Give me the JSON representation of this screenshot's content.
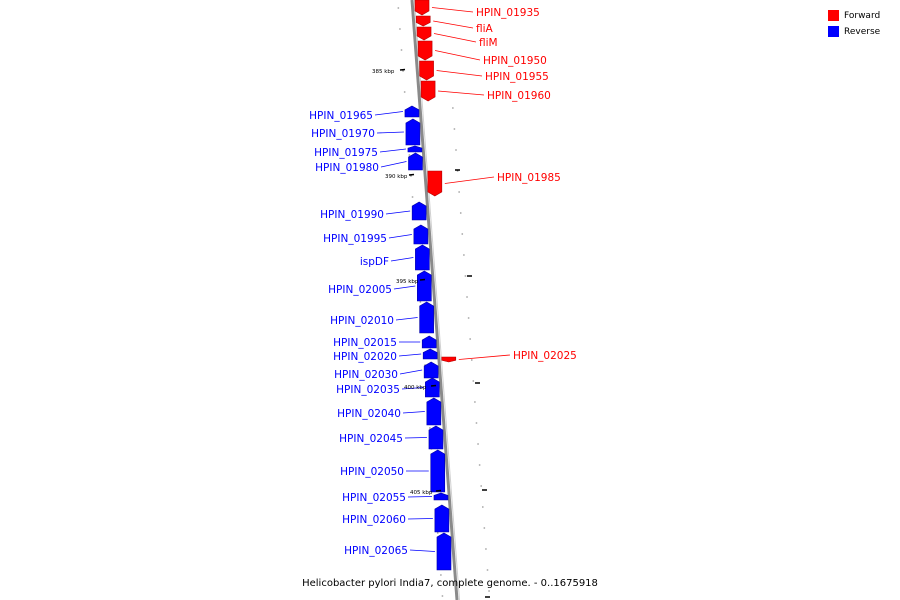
{
  "caption": "Helicobacter pylori India7, complete genome. - 0..1675918",
  "legend": [
    {
      "label": "Forward",
      "color": "#ff0000"
    },
    {
      "label": "Reverse",
      "color": "#0000ff"
    }
  ],
  "colors": {
    "forward": "#ff0000",
    "forward_dark": "#b20000",
    "reverse": "#0000ff",
    "reverse_dark": "#0000a6",
    "backbone": "#8a8a8a",
    "tick": "#000000"
  },
  "scale_marks": [
    {
      "label": "385 kbp"
    },
    {
      "label": "390 kbp"
    },
    {
      "label": "395 kbp"
    },
    {
      "label": "400 kbp"
    },
    {
      "label": "405 kbp"
    }
  ],
  "genes": [
    {
      "name": "HPIN_01935",
      "strand": "forward"
    },
    {
      "name": "fliA",
      "strand": "forward"
    },
    {
      "name": "fliM",
      "strand": "forward"
    },
    {
      "name": "HPIN_01950",
      "strand": "forward"
    },
    {
      "name": "HPIN_01955",
      "strand": "forward"
    },
    {
      "name": "HPIN_01960",
      "strand": "forward"
    },
    {
      "name": "HPIN_01965",
      "strand": "reverse"
    },
    {
      "name": "HPIN_01970",
      "strand": "reverse"
    },
    {
      "name": "HPIN_01975",
      "strand": "reverse"
    },
    {
      "name": "HPIN_01980",
      "strand": "reverse"
    },
    {
      "name": "HPIN_01985",
      "strand": "forward"
    },
    {
      "name": "HPIN_01990",
      "strand": "reverse"
    },
    {
      "name": "HPIN_01995",
      "strand": "reverse"
    },
    {
      "name": "ispDF",
      "strand": "reverse"
    },
    {
      "name": "HPIN_02005",
      "strand": "reverse"
    },
    {
      "name": "HPIN_02010",
      "strand": "reverse"
    },
    {
      "name": "HPIN_02015",
      "strand": "reverse"
    },
    {
      "name": "HPIN_02020",
      "strand": "reverse"
    },
    {
      "name": "HPIN_02025",
      "strand": "forward"
    },
    {
      "name": "HPIN_02030",
      "strand": "reverse"
    },
    {
      "name": "HPIN_02035",
      "strand": "reverse"
    },
    {
      "name": "HPIN_02040",
      "strand": "reverse"
    },
    {
      "name": "HPIN_02045",
      "strand": "reverse"
    },
    {
      "name": "HPIN_02050",
      "strand": "reverse"
    },
    {
      "name": "HPIN_02055",
      "strand": "reverse"
    },
    {
      "name": "HPIN_02060",
      "strand": "reverse"
    },
    {
      "name": "HPIN_02065",
      "strand": "reverse"
    }
  ]
}
